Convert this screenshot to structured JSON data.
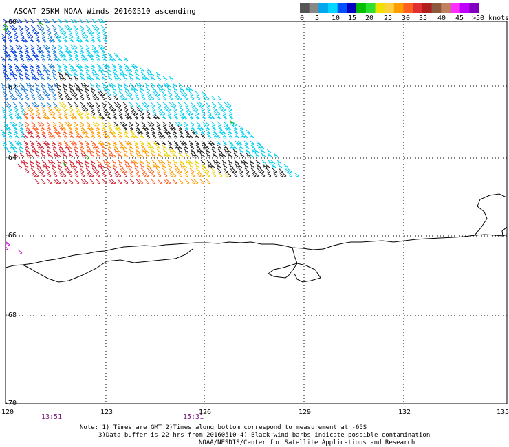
{
  "title": "ASCAT 25KM NOAA Winds 20160510 ascending",
  "legend": {
    "colors": [
      "#555555",
      "#888888",
      "#00a8f0",
      "#00d8ff",
      "#0050ff",
      "#0000c0",
      "#00c000",
      "#30e030",
      "#f0e000",
      "#ffd040",
      "#ff9c00",
      "#ff6020",
      "#e03030",
      "#b02020",
      "#8b5a3c",
      "#c08060",
      "#ff30ff",
      "#c000ff",
      "#8000c0"
    ],
    "labels": [
      "0",
      "5",
      "10",
      "15",
      "20",
      "25",
      "30",
      "35",
      "40",
      "45",
      ">50 knots"
    ]
  },
  "axes": {
    "lon_labels": [
      "120",
      "123",
      "126",
      "129",
      "132",
      "135"
    ],
    "lat_labels": [
      "-60",
      "-62",
      "-64",
      "-66",
      "-68",
      "-70"
    ]
  },
  "times": [
    "13:51",
    "15:31"
  ],
  "notes": [
    "Note: 1) Times are GMT 2)Times along bottom correspond to measurement at -65S",
    "3)Data buffer is 22 hrs from 20160510 4) Black wind barbs indicate possible contamination",
    "NOAA/NESDIS/Center for Satellite Applications and Research"
  ]
}
